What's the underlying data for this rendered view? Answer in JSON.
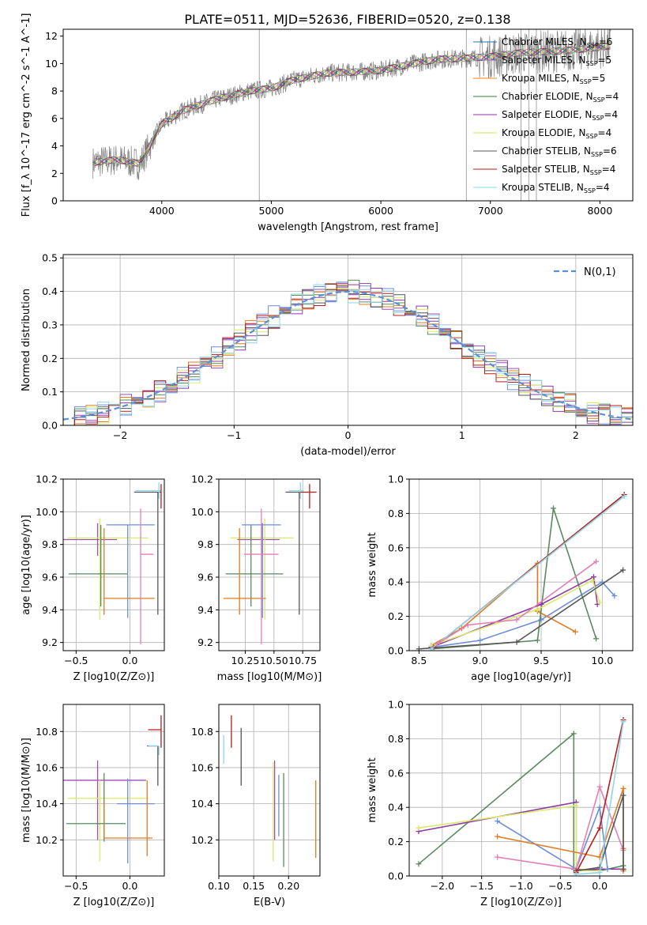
{
  "title": "PLATE=0511, MJD=52636, FIBERID=0520, z=0.138",
  "chart_data": [
    {
      "type": "line",
      "id": "spectrum",
      "title": "PLATE=0511, MJD=52636, FIBERID=0520, z=0.138",
      "xlabel": "wavelength [Angstrom, rest frame]",
      "ylabel": "Flux [f_λ 10^-17 erg cm^-2 s^-1 A^-1]",
      "xlim": [
        3100,
        8300
      ],
      "ylim": [
        0,
        12.5
      ],
      "xticks": [
        4000,
        5000,
        6000,
        7000,
        8000
      ],
      "yticks": [
        0,
        2,
        4,
        6,
        8,
        10,
        12
      ],
      "grid": false,
      "legend_position": "top-right",
      "data_series": {
        "name": "data",
        "color": "#808080",
        "x": [
          3370,
          3600,
          3800,
          4000,
          4200,
          4500,
          4800,
          5000,
          5200,
          5500,
          5800,
          6000,
          6300,
          6500,
          6800,
          7000,
          7300,
          7600,
          7900,
          8100
        ],
        "y": [
          2.8,
          3.0,
          2.7,
          5.6,
          6.6,
          7.4,
          8.0,
          8.2,
          8.8,
          9.3,
          9.4,
          9.5,
          10.0,
          10.3,
          10.4,
          10.5,
          10.8,
          10.9,
          11.1,
          11.3
        ]
      },
      "series": [
        {
          "name": "Chabrier MILES, N_SSP=6",
          "color": "#1f77b4"
        },
        {
          "name": "Salpeter MILES, N_SSP=5",
          "color": "#9467bd"
        },
        {
          "name": "Kroupa MILES, N_SSP=5",
          "color": "#ff7f0e"
        },
        {
          "name": "Chabrier ELODIE, N_SSP=4",
          "color": "#2e7d32"
        },
        {
          "name": "Salpeter ELODIE, N_SSP=4",
          "color": "#9c27b0"
        },
        {
          "name": "Kroupa ELODIE, N_SSP=4",
          "color": "#d4e157"
        },
        {
          "name": "Chabrier STELIB, N_SSP=6",
          "color": "#555555"
        },
        {
          "name": "Salpeter STELIB, N_SSP=4",
          "color": "#b71c1c"
        },
        {
          "name": "Kroupa STELIB, N_SSP=4",
          "color": "#80deea"
        }
      ]
    },
    {
      "type": "line",
      "id": "residuals",
      "xlabel": "(data-model)/error",
      "ylabel": "Normed distribution",
      "xlim": [
        -2.5,
        2.5
      ],
      "ylim": [
        0,
        0.51
      ],
      "xticks": [
        -2,
        -1,
        0,
        1,
        2
      ],
      "yticks": [
        0.0,
        0.1,
        0.2,
        0.3,
        0.4,
        0.5
      ],
      "grid": true,
      "legend_position": "top-right",
      "legend": "N(0,1)",
      "gaussian": {
        "mean": 0,
        "sigma": 1,
        "color": "#5b8fd6"
      },
      "histogram_colors": [
        "#6c8ed9",
        "#9b4fb7",
        "#e07b24",
        "#5a8a5e",
        "#8e3aa6",
        "#d9ea6a",
        "#555555",
        "#b71c1c",
        "#8ed6e8"
      ]
    },
    {
      "type": "scatter",
      "id": "age-vs-Z",
      "xlabel": "Z [log10(Z/Z⊙)]",
      "ylabel": "age [log10(age/yr)]",
      "xlim": [
        -0.62,
        0.32
      ],
      "ylim": [
        9.15,
        10.2
      ],
      "xticks": [
        -0.5,
        0.0
      ],
      "yticks": [
        9.2,
        9.4,
        9.6,
        9.8,
        10.0,
        10.2
      ],
      "grid": true,
      "points": [
        {
          "x": -0.3,
          "y": 9.83,
          "xerr": [
            0.5,
            0.18
          ],
          "yerr": [
            0.1,
            0.1
          ],
          "color": "#9b4fb7"
        },
        {
          "x": -0.28,
          "y": 9.84,
          "xerr": [
            0.3,
            0.45
          ],
          "yerr": [
            0.5,
            0.12
          ],
          "color": "#d9ea6a"
        },
        {
          "x": -0.27,
          "y": 9.62,
          "xerr": [
            0.3,
            0.25
          ],
          "yerr": [
            0.2,
            0.3
          ],
          "color": "#5a8a5e"
        },
        {
          "x": -0.24,
          "y": 9.47,
          "xerr": [
            0.0,
            0.47
          ],
          "yerr": [
            0.1,
            0.43
          ],
          "color": "#e07b24"
        },
        {
          "x": -0.02,
          "y": 9.92,
          "xerr": [
            0.2,
            0.25
          ],
          "yerr": [
            0.57,
            0.0
          ],
          "color": "#6c8ed9"
        },
        {
          "x": 0.1,
          "y": 9.74,
          "xerr": [
            0.0,
            0.12
          ],
          "yerr": [
            0.55,
            0.28
          ],
          "color": "#e57fb8"
        },
        {
          "x": 0.26,
          "y": 10.12,
          "xerr": [
            0.22,
            0.03
          ],
          "yerr": [
            0.75,
            0.0
          ],
          "color": "#555555"
        },
        {
          "x": 0.27,
          "y": 10.13,
          "xerr": [
            0.22,
            0.02
          ],
          "yerr": [
            0.05,
            0.05
          ],
          "color": "#8ed6e8"
        },
        {
          "x": 0.29,
          "y": 10.12,
          "xerr": [
            0.0,
            0.0
          ],
          "yerr": [
            0.1,
            0.05
          ],
          "color": "#b71c1c"
        }
      ]
    },
    {
      "type": "scatter",
      "id": "age-vs-mass",
      "xlabel": "mass [log10(M/M⊙)]",
      "ylabel": "",
      "xlim": [
        10.02,
        10.9
      ],
      "ylim": [
        9.15,
        10.2
      ],
      "xticks": [
        10.25,
        10.5,
        10.75
      ],
      "yticks": [
        9.2,
        9.4,
        9.6,
        9.8,
        10.0,
        10.2
      ],
      "grid": true,
      "points": [
        {
          "x": 10.4,
          "y": 9.83,
          "xerr": [
            0.22,
            0.15
          ],
          "yerr": [
            0.1,
            0.1
          ],
          "color": "#9b4fb7"
        },
        {
          "x": 10.42,
          "y": 9.84,
          "xerr": [
            0.3,
            0.25
          ],
          "yerr": [
            0.5,
            0.12
          ],
          "color": "#d9ea6a"
        },
        {
          "x": 10.3,
          "y": 9.62,
          "xerr": [
            0.22,
            0.28
          ],
          "yerr": [
            0.2,
            0.3
          ],
          "color": "#5a8a5e"
        },
        {
          "x": 10.2,
          "y": 9.47,
          "xerr": [
            0.14,
            0.23
          ],
          "yerr": [
            0.1,
            0.43
          ],
          "color": "#e07b24"
        },
        {
          "x": 10.4,
          "y": 9.92,
          "xerr": [
            0.18,
            0.16
          ],
          "yerr": [
            0.57,
            0.0
          ],
          "color": "#6c8ed9"
        },
        {
          "x": 10.39,
          "y": 9.74,
          "xerr": [
            0.15,
            0.15
          ],
          "yerr": [
            0.55,
            0.28
          ],
          "color": "#e57fb8"
        },
        {
          "x": 10.72,
          "y": 10.12,
          "xerr": [
            0.12,
            0.02
          ],
          "yerr": [
            0.75,
            0.0
          ],
          "color": "#555555"
        },
        {
          "x": 10.73,
          "y": 10.13,
          "xerr": [
            0.1,
            0.03
          ],
          "yerr": [
            0.05,
            0.05
          ],
          "color": "#8ed6e8"
        },
        {
          "x": 10.81,
          "y": 10.12,
          "xerr": [
            0.08,
            0.06
          ],
          "yerr": [
            0.1,
            0.05
          ],
          "color": "#b71c1c"
        }
      ]
    },
    {
      "type": "line",
      "id": "mass-weight-vs-age",
      "xlabel": "age [log10(age/yr)]",
      "ylabel": "mass weight",
      "xlim": [
        8.42,
        10.25
      ],
      "ylim": [
        0,
        1.0
      ],
      "xticks": [
        8.5,
        9.0,
        9.5,
        10.0
      ],
      "yticks": [
        0.0,
        0.2,
        0.4,
        0.6,
        0.8,
        1.0
      ],
      "grid": true,
      "series": [
        {
          "color": "#6c8ed9",
          "x": [
            8.6,
            9.0,
            9.5,
            10.0,
            10.1
          ],
          "y": [
            0.02,
            0.06,
            0.18,
            0.4,
            0.32
          ]
        },
        {
          "color": "#e07b24",
          "x": [
            8.6,
            8.85,
            9.47,
            9.47,
            9.78
          ],
          "y": [
            0.03,
            0.13,
            0.51,
            0.23,
            0.11
          ]
        },
        {
          "color": "#5a8a5e",
          "x": [
            8.6,
            9.47,
            9.6,
            9.95
          ],
          "y": [
            0.01,
            0.06,
            0.83,
            0.07
          ]
        },
        {
          "color": "#8e3aa6",
          "x": [
            8.6,
            9.5,
            9.93,
            9.96
          ],
          "y": [
            0.02,
            0.27,
            0.43,
            0.27
          ]
        },
        {
          "color": "#d9ea6a",
          "x": [
            8.6,
            9.47,
            9.92,
            9.98
          ],
          "y": [
            0.03,
            0.24,
            0.41,
            0.28
          ]
        },
        {
          "color": "#555555",
          "x": [
            8.5,
            9.3,
            10.17
          ],
          "y": [
            0.01,
            0.05,
            0.47
          ]
        },
        {
          "color": "#b71c1c",
          "x": [
            8.62,
            10.18
          ],
          "y": [
            0.02,
            0.91
          ]
        },
        {
          "color": "#8ed6e8",
          "x": [
            8.6,
            10.18
          ],
          "y": [
            0.01,
            0.9
          ]
        },
        {
          "color": "#e57fb8",
          "x": [
            8.65,
            8.9,
            9.3,
            9.95
          ],
          "y": [
            0.04,
            0.15,
            0.18,
            0.52
          ]
        }
      ]
    },
    {
      "type": "scatter",
      "id": "mass-vs-Z",
      "xlabel": "Z [log10(Z/Z⊙)]",
      "ylabel": "mass [log10(M/M⊙)]",
      "xlim": [
        -0.62,
        0.32
      ],
      "ylim": [
        10.0,
        10.95
      ],
      "xticks": [
        -0.5,
        0.0
      ],
      "yticks": [
        10.2,
        10.4,
        10.6,
        10.8
      ],
      "grid": true,
      "points": [
        {
          "x": -0.3,
          "y": 10.53,
          "xerr": [
            0.5,
            0.45
          ],
          "yerr": [
            0.33,
            0.11
          ],
          "color": "#9b4fb7"
        },
        {
          "x": -0.28,
          "y": 10.43,
          "xerr": [
            0.3,
            0.45
          ],
          "yerr": [
            0.35,
            0.1
          ],
          "color": "#d9ea6a"
        },
        {
          "x": -0.24,
          "y": 10.29,
          "xerr": [
            0.35,
            0.2
          ],
          "yerr": [
            0.1,
            0.28
          ],
          "color": "#5a8a5e"
        },
        {
          "x": -0.24,
          "y": 10.21,
          "xerr": [
            0.0,
            0.45
          ],
          "yerr": [
            0.0,
            0.2
          ],
          "color": "#e07b24"
        },
        {
          "x": -0.02,
          "y": 10.4,
          "xerr": [
            0.1,
            0.25
          ],
          "yerr": [
            0.33,
            0.14
          ],
          "color": "#6c8ed9"
        },
        {
          "x": 0.16,
          "y": 10.21,
          "xerr": [
            0.0,
            0.0
          ],
          "yerr": [
            0.1,
            0.32
          ],
          "color": "#e07b24"
        },
        {
          "x": 0.26,
          "y": 10.72,
          "xerr": [
            0.1,
            0.0
          ],
          "yerr": [
            0.22,
            0.0
          ],
          "color": "#555555"
        },
        {
          "x": 0.27,
          "y": 10.72,
          "xerr": [
            0.1,
            0.0
          ],
          "yerr": [
            0.05,
            0.0
          ],
          "color": "#8ed6e8"
        },
        {
          "x": 0.29,
          "y": 10.81,
          "xerr": [
            0.12,
            0.0
          ],
          "yerr": [
            0.1,
            0.08
          ],
          "color": "#b71c1c"
        }
      ]
    },
    {
      "type": "scatter",
      "id": "mass-vs-EBV",
      "xlabel": "E(B-V)",
      "ylabel": "",
      "xlim": [
        0.1,
        0.245
      ],
      "ylim": [
        10.0,
        10.95
      ],
      "xticks": [
        0.1,
        0.15,
        0.2
      ],
      "yticks": [
        10.2,
        10.4,
        10.6,
        10.8
      ],
      "grid": true,
      "points": [
        {
          "x": 0.107,
          "y": 10.72,
          "yerr": [
            0.1,
            0.06
          ],
          "color": "#8ed6e8"
        },
        {
          "x": 0.118,
          "y": 10.81,
          "yerr": [
            0.1,
            0.08
          ],
          "color": "#b71c1c"
        },
        {
          "x": 0.132,
          "y": 10.72,
          "yerr": [
            0.22,
            0.1
          ],
          "color": "#555555"
        },
        {
          "x": 0.178,
          "y": 10.43,
          "yerr": [
            0.35,
            0.2
          ],
          "color": "#d9ea6a"
        },
        {
          "x": 0.18,
          "y": 10.53,
          "yerr": [
            0.33,
            0.11
          ],
          "color": "#9b4fb7"
        },
        {
          "x": 0.186,
          "y": 10.3,
          "yerr": [
            0.08,
            0.26
          ],
          "color": "#6c8ed9"
        },
        {
          "x": 0.193,
          "y": 10.29,
          "yerr": [
            0.24,
            0.28
          ],
          "color": "#5a8a5e"
        },
        {
          "x": 0.239,
          "y": 10.3,
          "yerr": [
            0.2,
            0.23
          ],
          "color": "#e07b24"
        }
      ]
    },
    {
      "type": "line",
      "id": "mass-weight-vs-Z",
      "xlabel": "Z [log10(Z/Z⊙)]",
      "ylabel": "mass weight",
      "xlim": [
        -2.42,
        0.42
      ],
      "ylim": [
        0,
        1.0
      ],
      "xticks": [
        -2.0,
        -1.5,
        -1.0,
        -0.5,
        0.0
      ],
      "yticks": [
        0.0,
        0.2,
        0.4,
        0.6,
        0.8,
        1.0
      ],
      "grid": true,
      "series": [
        {
          "color": "#5a8a5e",
          "x": [
            -2.3,
            -0.33,
            -0.33,
            0.0,
            0.3
          ],
          "y": [
            0.07,
            0.83,
            0.04,
            0.03,
            0.06
          ]
        },
        {
          "color": "#8e3aa6",
          "x": [
            -2.3,
            -0.3,
            -0.3,
            0.0,
            0.3
          ],
          "y": [
            0.26,
            0.43,
            0.03,
            0.04,
            0.04
          ]
        },
        {
          "color": "#d9ea6a",
          "x": [
            -2.3,
            -0.3,
            -0.3,
            0.0
          ],
          "y": [
            0.28,
            0.41,
            0.03,
            0.03
          ]
        },
        {
          "color": "#6c8ed9",
          "x": [
            -1.3,
            -0.3,
            0.0,
            0.1
          ],
          "y": [
            0.32,
            0.04,
            0.4,
            0.04
          ]
        },
        {
          "color": "#e07b24",
          "x": [
            -1.3,
            0.0,
            0.3,
            0.3,
            0.3
          ],
          "y": [
            0.23,
            0.11,
            0.51,
            0.16,
            0.03
          ]
        },
        {
          "color": "#e57fb8",
          "x": [
            -1.3,
            -0.3,
            0.0,
            0.3
          ],
          "y": [
            0.11,
            0.04,
            0.52,
            0.15
          ]
        },
        {
          "color": "#555555",
          "x": [
            -0.3,
            0.0,
            0.3,
            0.3
          ],
          "y": [
            0.03,
            0.05,
            0.47,
            0.04
          ]
        },
        {
          "color": "#b71c1c",
          "x": [
            -0.3,
            0.0,
            0.3
          ],
          "y": [
            0.02,
            0.28,
            0.91
          ]
        },
        {
          "color": "#8ed6e8",
          "x": [
            -0.3,
            0.0,
            0.3
          ],
          "y": [
            0.01,
            0.02,
            0.9
          ]
        }
      ]
    }
  ]
}
